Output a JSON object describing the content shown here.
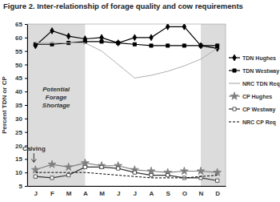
{
  "chart_data": {
    "type": "line",
    "title": "Figure 2.  Inter-relationship of forage quality and cow requirements",
    "y_label": "Percent TDN or CP",
    "annotations": [
      "Potential Forage Shortage",
      "Calving"
    ],
    "categories": [
      "J",
      "F",
      "M",
      "A",
      "M",
      "J",
      "J",
      "A",
      "S",
      "O",
      "N",
      "D"
    ],
    "ylim": [
      5,
      65
    ],
    "yticks": [
      5,
      10,
      15,
      20,
      25,
      30,
      35,
      40,
      45,
      50,
      55,
      60,
      65
    ],
    "grid": false,
    "legend": "right",
    "series": [
      {
        "name": "TDN Hughes",
        "color": "#000000",
        "marker": "diamond",
        "line_style": "solid",
        "values": [
          57,
          62.5,
          60.5,
          59.5,
          60,
          58,
          60,
          60,
          64,
          64,
          57,
          56
        ]
      },
      {
        "name": "TDN Westway",
        "color": "#000000",
        "marker": "square",
        "line_style": "solid",
        "values": [
          57.5,
          57.5,
          58,
          58.5,
          58.5,
          58,
          57.5,
          57,
          57,
          57,
          57,
          57
        ]
      },
      {
        "name": "NRC TDN Req",
        "color": "#b0b0b0",
        "marker": "none",
        "line_style": "solid",
        "values": [
          58,
          58,
          58,
          58,
          55,
          50,
          45,
          46,
          47.5,
          49.5,
          52,
          56
        ]
      },
      {
        "name": "CP Hughes",
        "color": "#808080",
        "marker": "star",
        "line_style": "solid",
        "values": [
          11,
          13,
          12,
          13.5,
          12.5,
          12.5,
          11,
          10.5,
          10,
          10.5,
          10.5,
          10
        ]
      },
      {
        "name": "CP Westway",
        "color": "#333333",
        "marker": "square-open",
        "line_style": "solid",
        "values": [
          8.5,
          8,
          9,
          12,
          12,
          11.5,
          10,
          9,
          9,
          8,
          8,
          7
        ]
      },
      {
        "name": "NRC CP Req",
        "color": "#000000",
        "marker": "none",
        "line_style": "dashed",
        "values": [
          10,
          10,
          10,
          10,
          9.5,
          9,
          8.5,
          8,
          8,
          8,
          8.5,
          9
        ]
      }
    ]
  }
}
